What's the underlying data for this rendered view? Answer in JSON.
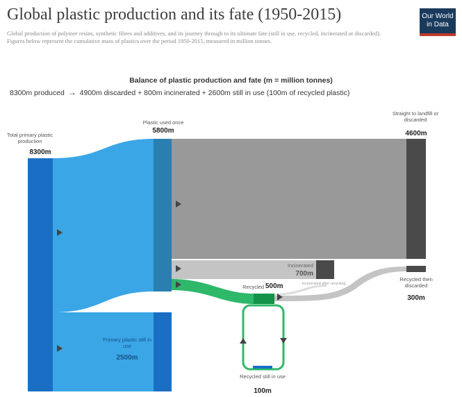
{
  "header": {
    "title": "Global plastic production and its fate (1950-2015)",
    "subtitle_1": "Global production of polymer resins, synthetic fibres and additives, and its journey through to its ultimate fate (still in use, recycled, incinerated or discarded).",
    "subtitle_2": "Figures below represent the cumulative mass of plastics over the period 1950-2015, measured in million tonnes.",
    "logo_line1": "Our World",
    "logo_line2": "in Data"
  },
  "balance": {
    "title": "Balance of plastic production and fate (m = million tonnes)",
    "produced": "8300m produced",
    "arrow": "→",
    "equation": "4900m discarded + 800m incinerated + 2600m still in use (100m of recycled plastic)"
  },
  "nodes": {
    "total_label": "Total primary plastic production",
    "total_value": "8300m",
    "used_once_label": "Plastic used once",
    "used_once_value": "5800m",
    "landfill_label": "Straight to landfill or discarded",
    "landfill_value": "4600m",
    "incinerated_label": "Incinerated",
    "incinerated_value": "700m",
    "incinerated_after_label": "Incinerated after recycling",
    "recycled_label": "Recycled",
    "recycled_value": "500m",
    "recycled_discarded_label": "Recycled then discarded",
    "recycled_discarded_value": "300m",
    "primary_still_label": "Primary plastic still in use",
    "primary_still_value": "2500m",
    "recycled_still_label": "Recycled still in use",
    "recycled_still_value": "100m"
  },
  "colors": {
    "primary_blue": "#1a6fc4",
    "light_blue": "#3aa6e6",
    "mid_blue": "#2a7fb0",
    "gray": "#999999",
    "dark_gray": "#4a4a4a",
    "light_gray": "#c4c4c4",
    "green": "#2eb86a",
    "dark_green": "#14924a"
  }
}
